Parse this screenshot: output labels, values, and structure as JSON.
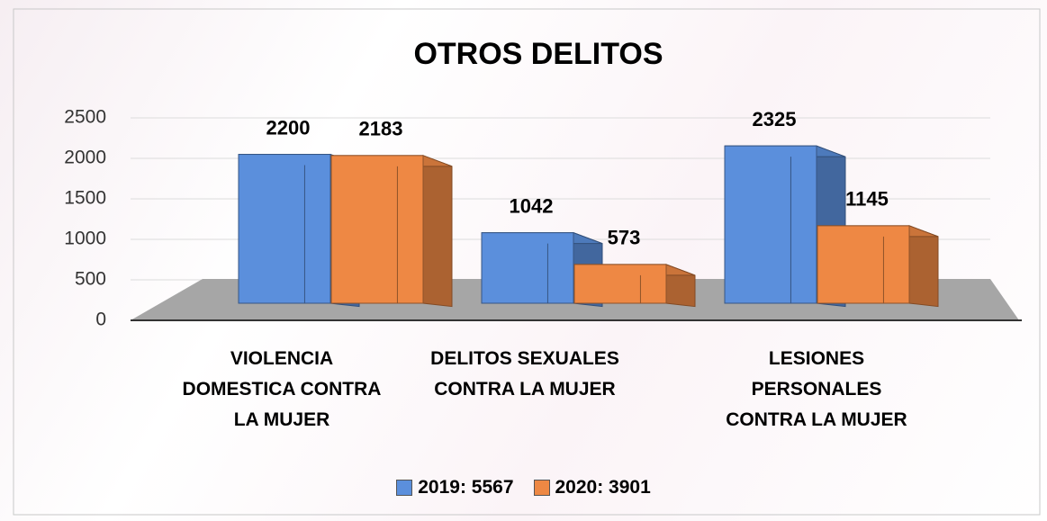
{
  "chart_data": {
    "type": "bar3d",
    "title": "OTROS DELITOS",
    "categories": [
      "VIOLENCIA DOMESTICA CONTRA LA MUJER",
      "DELITOS SEXUALES CONTRA LA MUJER",
      "LESIONES PERSONALES CONTRA LA MUJER"
    ],
    "series": [
      {
        "name": "2019: 5567",
        "color": "#5b8fdc",
        "values": [
          2200,
          1042,
          2325
        ]
      },
      {
        "name": "2020: 3901",
        "color": "#ee8844",
        "values": [
          2183,
          573,
          1145
        ]
      }
    ],
    "ylim": [
      0,
      2500
    ],
    "yticks": [
      0,
      500,
      1000,
      1500,
      2000,
      2500
    ],
    "grid": true,
    "legend": "bottom"
  }
}
